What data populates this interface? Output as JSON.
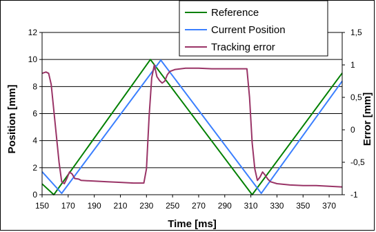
{
  "chart_data": {
    "type": "line",
    "title": "",
    "xlabel": "Time [ms]",
    "ylabel": "Position [mm]",
    "y2label": "Error [mm]",
    "xlim": [
      150,
      380
    ],
    "ylim": [
      0,
      12
    ],
    "y2lim": [
      -1,
      1.5
    ],
    "x_ticks": [
      150,
      170,
      190,
      210,
      230,
      250,
      270,
      290,
      310,
      330,
      350,
      370
    ],
    "y_ticks": [
      0,
      2,
      4,
      6,
      8,
      10,
      12
    ],
    "y2_ticks": [
      -1,
      -0.5,
      0,
      0.5,
      1,
      1.5
    ],
    "y2_tick_labels": [
      "-1",
      "-0,5",
      "0",
      "0,5",
      "1",
      "1,5"
    ],
    "grid": "horizontal",
    "legend_position": "top-right",
    "series": [
      {
        "name": "Reference",
        "color": "#008000",
        "axis": "left",
        "x": [
          150,
          159,
          233,
          311,
          380
        ],
        "y": [
          0.8,
          0.0,
          10.0,
          0.0,
          9.0
        ]
      },
      {
        "name": "Current Position",
        "color": "#3a7fff",
        "axis": "left",
        "x": [
          150,
          165,
          241,
          318,
          380
        ],
        "y": [
          1.7,
          0.1,
          9.95,
          0.1,
          8.4
        ]
      },
      {
        "name": "Tracking error",
        "color": "#993366",
        "axis": "right",
        "x": [
          150,
          153,
          155,
          157,
          159,
          161,
          163,
          165,
          167,
          169,
          171,
          173,
          175,
          178,
          180,
          190,
          200,
          210,
          220,
          228,
          230,
          232,
          234,
          236,
          238,
          240,
          242,
          244,
          246,
          248,
          252,
          260,
          270,
          280,
          290,
          300,
          307,
          309,
          311,
          313,
          315,
          317,
          319,
          321,
          323,
          325,
          330,
          340,
          350,
          360,
          370,
          380
        ],
        "y": [
          0.87,
          0.89,
          0.87,
          0.7,
          0.3,
          -0.1,
          -0.5,
          -0.8,
          -0.83,
          -0.75,
          -0.65,
          -0.68,
          -0.75,
          -0.76,
          -0.78,
          -0.79,
          -0.8,
          -0.81,
          -0.82,
          -0.82,
          -0.6,
          0.2,
          0.8,
          1.0,
          0.82,
          0.76,
          0.72,
          0.75,
          0.85,
          0.9,
          0.93,
          0.95,
          0.95,
          0.94,
          0.94,
          0.94,
          0.94,
          0.5,
          -0.2,
          -0.6,
          -0.78,
          -0.73,
          -0.65,
          -0.7,
          -0.76,
          -0.8,
          -0.83,
          -0.85,
          -0.86,
          -0.86,
          -0.87,
          -0.88
        ]
      }
    ]
  }
}
